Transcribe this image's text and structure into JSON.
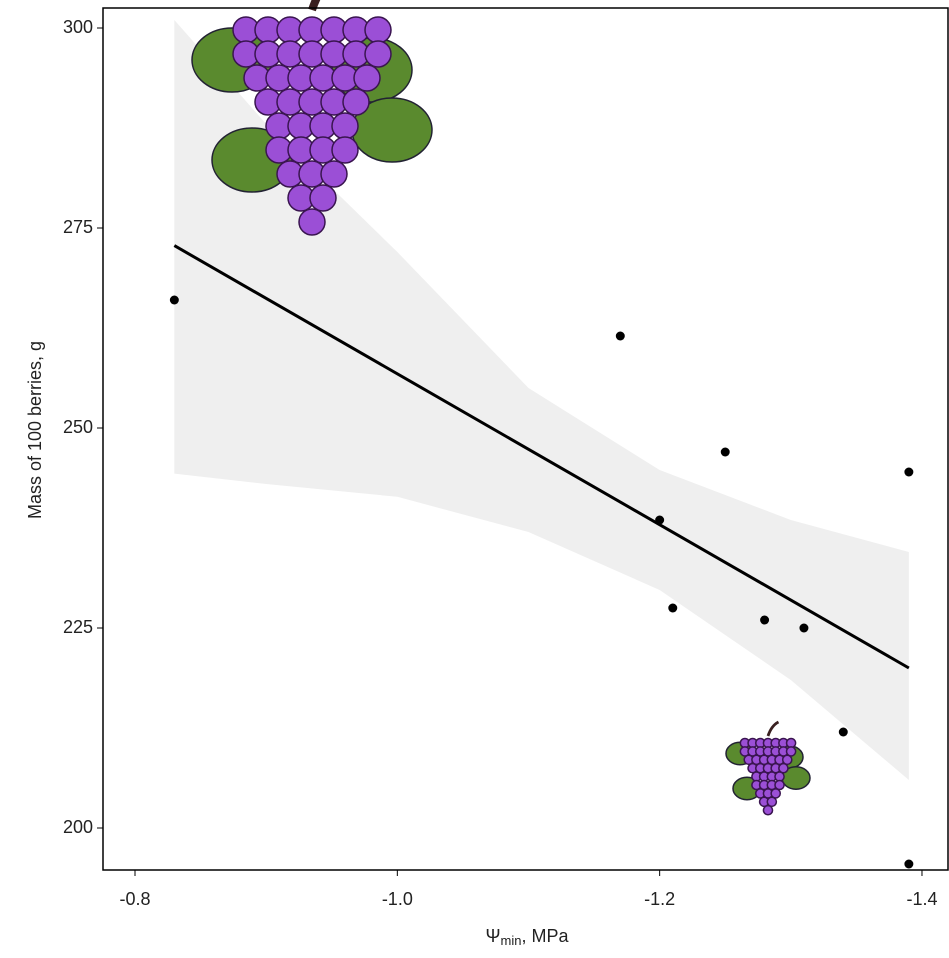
{
  "chart_data": {
    "type": "scatter",
    "ylabel": "Mass of 100 berries, g",
    "xlabel": {
      "symbol": "Ψ",
      "subscript": "min",
      "rest": ", MPa"
    },
    "xlim": [
      -0.7756,
      -1.4206
    ],
    "ylim": [
      194.75,
      302.5
    ],
    "xticks": [
      -0.8,
      {
        "value": -1,
        "label": "-1.0"
      },
      -1.2,
      -1.4
    ],
    "yticks": [
      200,
      225,
      250,
      275,
      300
    ],
    "color": "#000000",
    "x": [
      -0.83,
      -1.17,
      -1.2,
      -1.21,
      -1.25,
      -1.28,
      -1.31,
      -1.34,
      -1.39,
      -1.39
    ],
    "values": [
      266,
      261.5,
      238.5,
      227.5,
      247,
      226,
      225,
      212,
      244.5,
      195.5
    ],
    "fit": {
      "x": [
        -0.83,
        -1.39
      ],
      "values": [
        272.8,
        220
      ],
      "color": "#000000"
    },
    "band": {
      "x": [
        -0.83,
        -0.9,
        -1.0,
        -1.1,
        -1.2,
        -1.3,
        -1.39
      ],
      "upper": [
        301,
        288,
        272,
        255,
        244.75,
        238.5,
        234.5
      ],
      "lower": [
        244.3,
        243,
        241.4,
        237,
        229.75,
        218.5,
        206
      ],
      "color": "#efefef"
    }
  }
}
